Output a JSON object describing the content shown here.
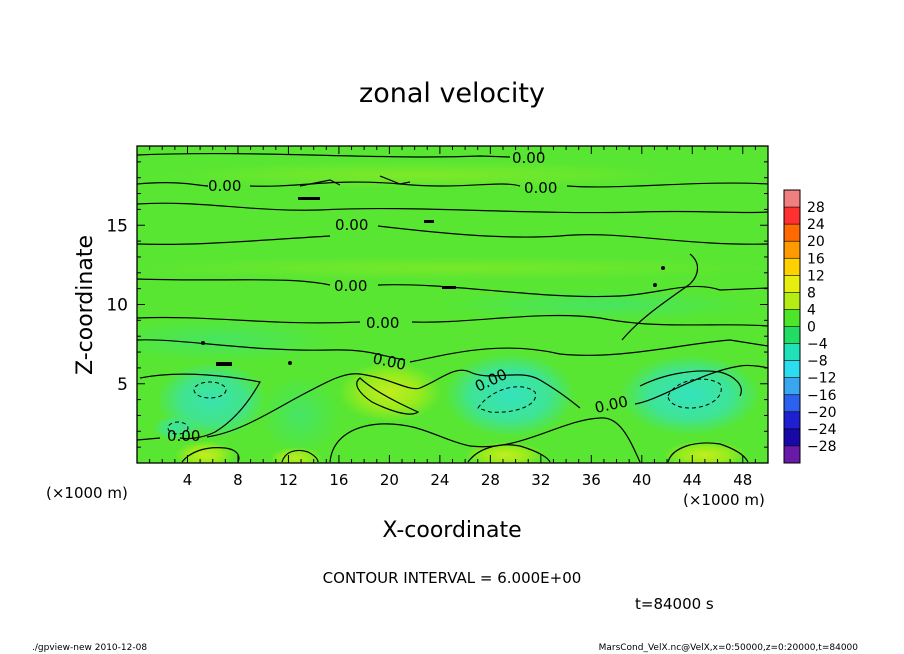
{
  "chart_data": {
    "type": "heatmap",
    "title": "zonal velocity",
    "xlabel": "X-coordinate",
    "ylabel": "Z-coordinate",
    "x_unit": "(×1000 m)",
    "y_unit": "(×1000 m)",
    "xlim": [
      0,
      50
    ],
    "ylim": [
      0,
      20
    ],
    "x_ticks": [
      "4",
      "8",
      "12",
      "16",
      "20",
      "24",
      "28",
      "32",
      "36",
      "40",
      "44",
      "48"
    ],
    "y_ticks": [
      "5",
      "10",
      "15"
    ],
    "colorbar": {
      "levels": [
        "28",
        "24",
        "20",
        "16",
        "12",
        "8",
        "4",
        "0",
        "−4",
        "−8",
        "−12",
        "−16",
        "−20",
        "−24",
        "−28"
      ],
      "colors": [
        "#f08080",
        "#ff3030",
        "#ff6a00",
        "#ff9a00",
        "#ffd000",
        "#e6ee10",
        "#b4ec14",
        "#4ee62a",
        "#22dc64",
        "#22e0b8",
        "#2cdcf0",
        "#3aa6f0",
        "#2c60f0",
        "#2020d0",
        "#1808a8",
        "#6a1aa8"
      ]
    },
    "contour_labels": [
      "0.00",
      "0.00",
      "0.00",
      "0.00",
      "0.00",
      "0.00",
      "0.00",
      "0.00"
    ],
    "contour_interval": "CONTOUR INTERVAL = 6.000E+00",
    "time_label": "t=84000 s"
  },
  "footer": {
    "left": "./gpview-new  2010-12-08",
    "right": "MarsCond_VelX.nc@VelX,x=0:50000,z=0:20000,t=84000"
  }
}
